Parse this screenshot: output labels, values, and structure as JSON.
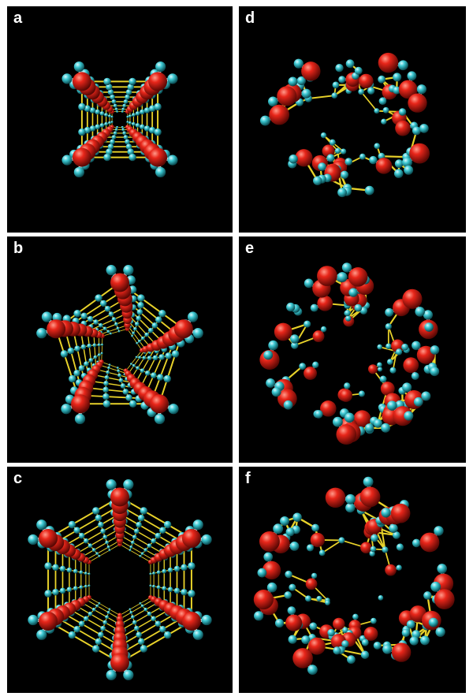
{
  "panels": [
    {
      "label": "a",
      "rings": 4,
      "style": "ordered"
    },
    {
      "label": "b",
      "rings": 5,
      "style": "ordered"
    },
    {
      "label": "c",
      "rings": 6,
      "style": "ordered"
    },
    {
      "label": "d",
      "rings": 7,
      "style": "disordered"
    },
    {
      "label": "e",
      "rings": 8,
      "style": "disordered"
    },
    {
      "label": "f",
      "rings": 9,
      "style": "disordered"
    }
  ],
  "colors": {
    "oxygen": "#e8261a",
    "hydrogen": "#3cc8d2",
    "bond": "#e8d22a",
    "covalent": "#d8d8d8",
    "background": "#000000"
  }
}
